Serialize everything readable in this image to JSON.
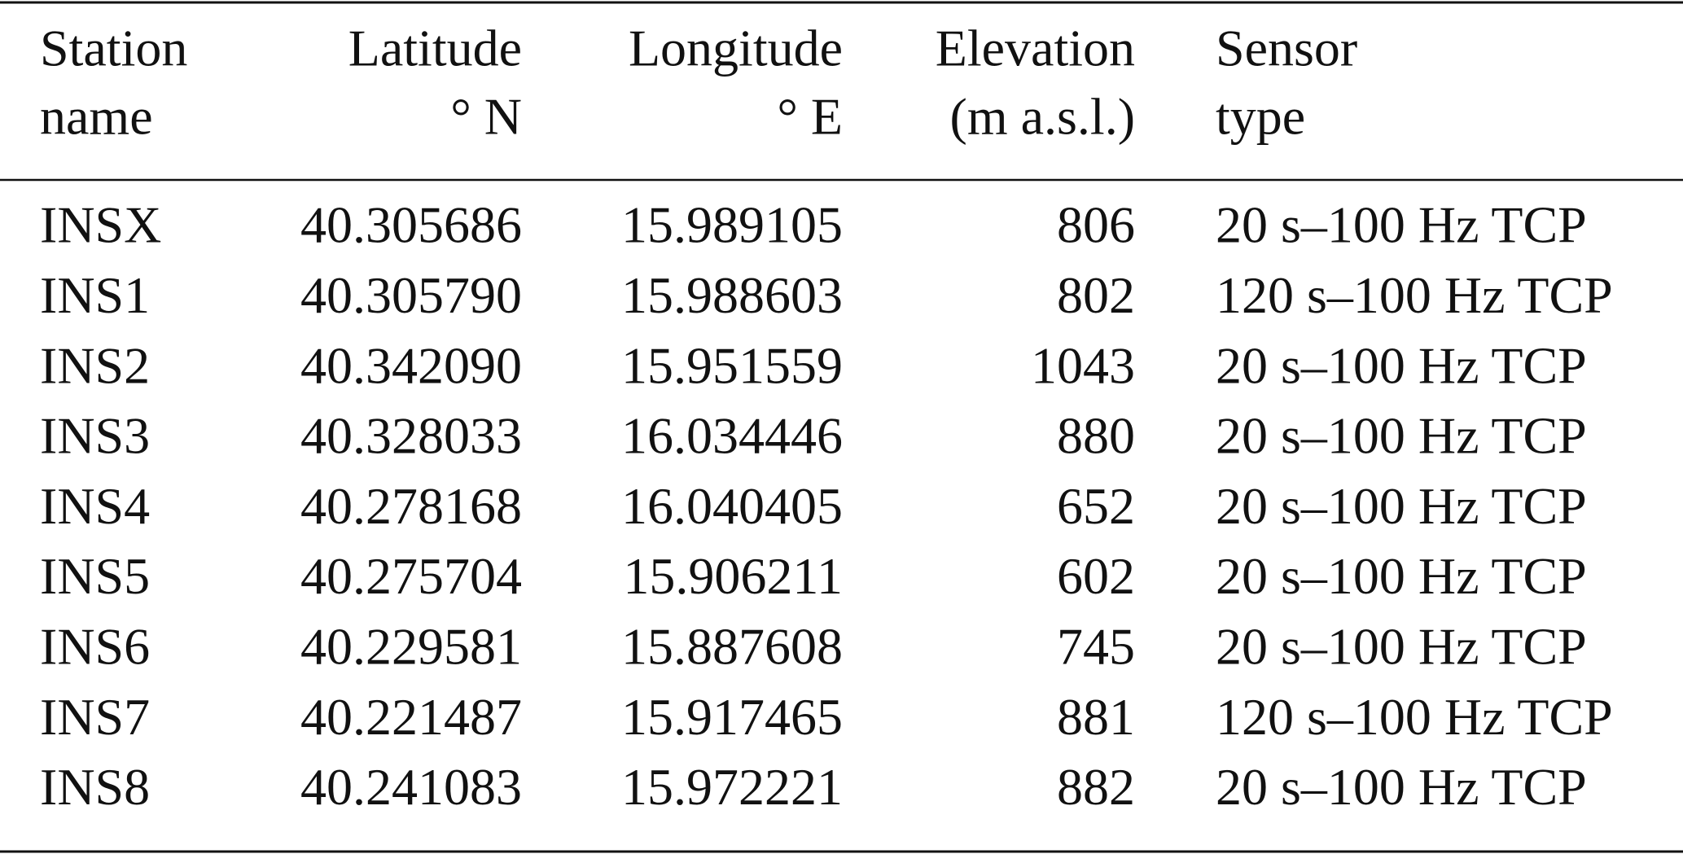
{
  "table": {
    "header": [
      [
        "Station",
        "name"
      ],
      [
        "Latitude",
        "° N"
      ],
      [
        "Longitude",
        "° E"
      ],
      [
        "Elevation",
        "(m a.s.l.)"
      ],
      [
        "Sensor",
        "type"
      ]
    ],
    "rows": [
      [
        "INSX",
        "40.305686",
        "15.989105",
        "806",
        "20 s–100 Hz TCP"
      ],
      [
        "INS1",
        "40.305790",
        "15.988603",
        "802",
        "120 s–100 Hz TCP"
      ],
      [
        "INS2",
        "40.342090",
        "15.951559",
        "1043",
        "20 s–100 Hz TCP"
      ],
      [
        "INS3",
        "40.328033",
        "16.034446",
        "880",
        "20 s–100 Hz TCP"
      ],
      [
        "INS4",
        "40.278168",
        "16.040405",
        "652",
        "20 s–100 Hz TCP"
      ],
      [
        "INS5",
        "40.275704",
        "15.906211",
        "602",
        "20 s–100 Hz TCP"
      ],
      [
        "INS6",
        "40.229581",
        "15.887608",
        "745",
        "20 s–100 Hz TCP"
      ],
      [
        "INS7",
        "40.221487",
        "15.917465",
        "881",
        "120 s–100 Hz TCP"
      ],
      [
        "INS8",
        "40.241083",
        "15.972221",
        "882",
        "20 s–100 Hz TCP"
      ]
    ]
  }
}
